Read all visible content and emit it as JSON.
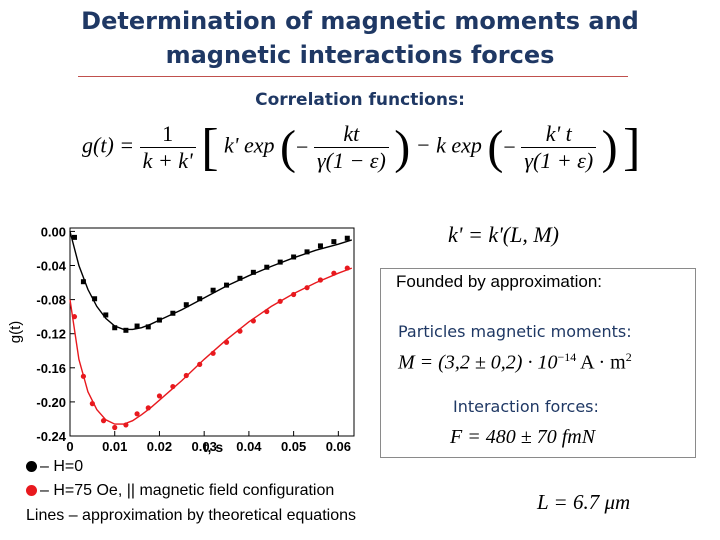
{
  "title_line1": "Determination of magnetic moments and",
  "title_line2": "magnetic interactions forces",
  "subtitle": "Correlation functions:",
  "formula": {
    "lhs": "g(t) =",
    "frac1_num": "1",
    "frac1_den": "k + k'",
    "term1": "k' exp",
    "f2_num": "kt",
    "f2_den": "γ(1 − ε)",
    "minus": "− k exp",
    "f3_num": "k' t",
    "f3_den": "γ(1 + ε)",
    "kdef": "k' = k'(L, M)"
  },
  "founded": "Founded by approximation:",
  "particles_label": "Particles magnetic moments:",
  "particles_value": "M = (3,2 ± 0,2) · 10",
  "particles_exp": "−14",
  "particles_unit": "A · m",
  "particles_unit_exp": "2",
  "forces_label": "Interaction forces:",
  "forces_value": "F = 480 ± 70 fmN",
  "l_value": "L = 6.7 μm",
  "legend": {
    "h0": "– H=0",
    "h75": "– H=75 Oe, || magnetic field configuration",
    "lines": "Lines – approximation by theoretical equations"
  },
  "colors": {
    "title": "#1f3864",
    "rule": "#c0504d",
    "series_black": "#000000",
    "series_red": "#e8191e"
  },
  "chart_data": {
    "type": "line",
    "xlabel": "t, s",
    "ylabel": "g(t)",
    "xlim": [
      0,
      0.06
    ],
    "ylim": [
      -0.24,
      0.0
    ],
    "x_ticks": [
      "0",
      "0.01",
      "0.02",
      "0.03",
      "0.04",
      "0.05",
      "0.06"
    ],
    "y_ticks": [
      "0.00",
      "-0.04",
      "-0.08",
      "-0.12",
      "-0.16",
      "-0.20",
      "-0.24"
    ],
    "series": [
      {
        "color": "#000000",
        "points": [
          [
            0.001,
            -0.007
          ],
          [
            0.003,
            -0.059
          ],
          [
            0.0055,
            -0.079
          ],
          [
            0.008,
            -0.098
          ],
          [
            0.01,
            -0.113
          ],
          [
            0.0125,
            -0.116
          ],
          [
            0.015,
            -0.111
          ],
          [
            0.0175,
            -0.112
          ],
          [
            0.02,
            -0.104
          ],
          [
            0.023,
            -0.096
          ],
          [
            0.026,
            -0.086
          ],
          [
            0.029,
            -0.079
          ],
          [
            0.032,
            -0.069
          ],
          [
            0.035,
            -0.063
          ],
          [
            0.038,
            -0.055
          ],
          [
            0.041,
            -0.048
          ],
          [
            0.044,
            -0.042
          ],
          [
            0.047,
            -0.036
          ],
          [
            0.05,
            -0.03
          ],
          [
            0.053,
            -0.024
          ],
          [
            0.056,
            -0.017
          ],
          [
            0.059,
            -0.012
          ],
          [
            0.062,
            -0.008
          ]
        ],
        "fit": [
          [
            0,
            0.0
          ],
          [
            0.002,
            -0.04
          ],
          [
            0.004,
            -0.068
          ],
          [
            0.006,
            -0.088
          ],
          [
            0.008,
            -0.102
          ],
          [
            0.01,
            -0.111
          ],
          [
            0.012,
            -0.115
          ],
          [
            0.014,
            -0.115
          ],
          [
            0.016,
            -0.113
          ],
          [
            0.018,
            -0.109
          ],
          [
            0.02,
            -0.104
          ],
          [
            0.025,
            -0.092
          ],
          [
            0.03,
            -0.078
          ],
          [
            0.035,
            -0.064
          ],
          [
            0.04,
            -0.052
          ],
          [
            0.045,
            -0.041
          ],
          [
            0.05,
            -0.031
          ],
          [
            0.055,
            -0.022
          ],
          [
            0.06,
            -0.015
          ],
          [
            0.063,
            -0.01
          ]
        ]
      },
      {
        "color": "#e8191e",
        "points": [
          [
            0.001,
            -0.1
          ],
          [
            0.003,
            -0.17
          ],
          [
            0.005,
            -0.202
          ],
          [
            0.0075,
            -0.222
          ],
          [
            0.01,
            -0.23
          ],
          [
            0.0125,
            -0.227
          ],
          [
            0.015,
            -0.214
          ],
          [
            0.0175,
            -0.207
          ],
          [
            0.02,
            -0.193
          ],
          [
            0.023,
            -0.182
          ],
          [
            0.026,
            -0.169
          ],
          [
            0.029,
            -0.156
          ],
          [
            0.032,
            -0.143
          ],
          [
            0.035,
            -0.13
          ],
          [
            0.038,
            -0.117
          ],
          [
            0.041,
            -0.105
          ],
          [
            0.044,
            -0.094
          ],
          [
            0.047,
            -0.082
          ],
          [
            0.05,
            -0.074
          ],
          [
            0.053,
            -0.066
          ],
          [
            0.056,
            -0.057
          ],
          [
            0.059,
            -0.049
          ],
          [
            0.062,
            -0.043
          ]
        ],
        "fit": [
          [
            0,
            -0.08
          ],
          [
            0.002,
            -0.15
          ],
          [
            0.004,
            -0.188
          ],
          [
            0.006,
            -0.209
          ],
          [
            0.008,
            -0.221
          ],
          [
            0.01,
            -0.226
          ],
          [
            0.012,
            -0.226
          ],
          [
            0.014,
            -0.222
          ],
          [
            0.016,
            -0.215
          ],
          [
            0.018,
            -0.207
          ],
          [
            0.02,
            -0.198
          ],
          [
            0.025,
            -0.175
          ],
          [
            0.03,
            -0.15
          ],
          [
            0.035,
            -0.127
          ],
          [
            0.04,
            -0.106
          ],
          [
            0.045,
            -0.088
          ],
          [
            0.05,
            -0.073
          ],
          [
            0.055,
            -0.06
          ],
          [
            0.06,
            -0.049
          ],
          [
            0.063,
            -0.043
          ]
        ]
      }
    ]
  }
}
